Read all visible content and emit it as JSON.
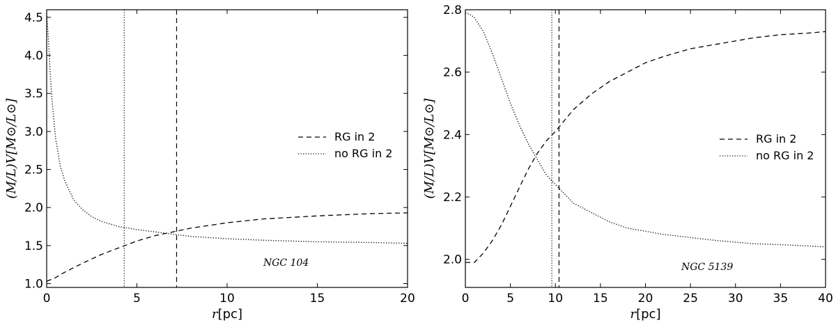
{
  "chart_data": [
    {
      "type": "line",
      "annotation": "NGC 104",
      "xlabel_var": "r",
      "xlabel_unit": "[pc]",
      "ylabel": "(M/L)V[M⊙/L⊙]",
      "xlim": [
        0,
        20
      ],
      "ylim": [
        0.95,
        4.6
      ],
      "xticks": [
        0,
        5,
        10,
        15,
        20
      ],
      "yticks": [
        1.0,
        1.5,
        2.0,
        2.5,
        3.0,
        3.5,
        4.0,
        4.5
      ],
      "ytick_labels": [
        "1.0",
        "1.5",
        "2.0",
        "2.5",
        "3.0",
        "3.5",
        "4.0",
        "4.5"
      ],
      "vlines": [
        {
          "x": 4.3,
          "style": "dotted"
        },
        {
          "x": 7.2,
          "style": "dashed"
        }
      ],
      "legend_position": "center-right",
      "series": [
        {
          "name": "RG in 2",
          "style": "dashed",
          "x": [
            0,
            0.5,
            1,
            2,
            3,
            4,
            5,
            6,
            7,
            8,
            10,
            12,
            15,
            18,
            20
          ],
          "y": [
            1.03,
            1.08,
            1.15,
            1.27,
            1.38,
            1.47,
            1.56,
            1.63,
            1.68,
            1.73,
            1.8,
            1.85,
            1.89,
            1.92,
            1.93
          ]
        },
        {
          "name": "no RG in 2",
          "style": "dotted",
          "x": [
            0,
            0.1,
            0.2,
            0.3,
            0.5,
            0.75,
            1,
            1.5,
            2,
            2.5,
            3,
            4,
            5,
            6,
            7,
            8,
            10,
            12,
            15,
            18,
            20
          ],
          "y": [
            4.55,
            4.2,
            3.75,
            3.4,
            2.9,
            2.55,
            2.35,
            2.1,
            1.97,
            1.88,
            1.82,
            1.75,
            1.71,
            1.68,
            1.65,
            1.62,
            1.59,
            1.57,
            1.55,
            1.54,
            1.53
          ]
        }
      ]
    },
    {
      "type": "line",
      "annotation": "NGC 5139",
      "xlabel_var": "r",
      "xlabel_unit": "[pc]",
      "ylabel": "(M/L)V[M⊙/L⊙]",
      "xlim": [
        0,
        40
      ],
      "ylim": [
        1.91,
        2.8
      ],
      "xticks": [
        0,
        5,
        10,
        15,
        20,
        25,
        30,
        35,
        40
      ],
      "yticks": [
        2.0,
        2.2,
        2.4,
        2.6,
        2.8
      ],
      "ytick_labels": [
        "2.0",
        "2.2",
        "2.4",
        "2.6",
        "2.8"
      ],
      "vlines": [
        {
          "x": 9.6,
          "style": "dotted"
        },
        {
          "x": 10.4,
          "style": "dashed"
        }
      ],
      "legend_position": "center-right",
      "series": [
        {
          "name": "RG in 2",
          "style": "dashed",
          "x": [
            0,
            1,
            2,
            3,
            4,
            5,
            6,
            7,
            8,
            9,
            10,
            12,
            14,
            16,
            18,
            20,
            22,
            25,
            28,
            30,
            32,
            35,
            38,
            40
          ],
          "y": [
            1.99,
            1.99,
            2.02,
            2.06,
            2.11,
            2.17,
            2.23,
            2.29,
            2.34,
            2.38,
            2.41,
            2.48,
            2.53,
            2.57,
            2.6,
            2.63,
            2.65,
            2.675,
            2.69,
            2.7,
            2.71,
            2.72,
            2.725,
            2.73
          ]
        },
        {
          "name": "no RG in 2",
          "style": "dotted",
          "x": [
            0,
            0.5,
            1,
            2,
            3,
            4,
            5,
            6,
            7,
            8,
            9,
            10,
            11,
            12,
            14,
            16,
            18,
            20,
            22,
            25,
            28,
            30,
            32,
            35,
            38,
            40
          ],
          "y": [
            2.79,
            2.785,
            2.775,
            2.73,
            2.66,
            2.58,
            2.5,
            2.43,
            2.37,
            2.32,
            2.27,
            2.24,
            2.21,
            2.18,
            2.15,
            2.12,
            2.1,
            2.09,
            2.08,
            2.07,
            2.06,
            2.055,
            2.05,
            2.047,
            2.043,
            2.04
          ]
        }
      ]
    }
  ]
}
